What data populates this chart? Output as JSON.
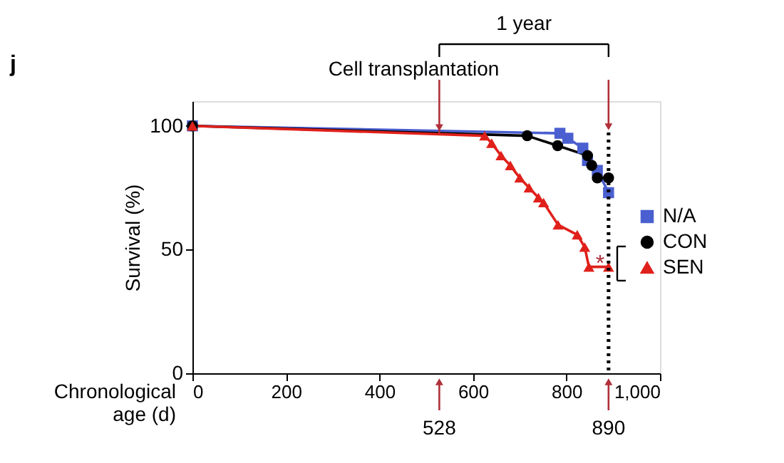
{
  "chart_data": {
    "type": "line",
    "title": "j",
    "xlabel": "Chronological age (d)",
    "ylabel": "Survival (%)",
    "xlim": [
      0,
      1000
    ],
    "xticks": [
      0,
      200,
      400,
      600,
      800,
      {
        "value": 1000,
        "label": "1,000"
      }
    ],
    "ylim": [
      0,
      110
    ],
    "yticks": [
      0,
      50,
      100
    ],
    "grid": false,
    "legend": "right",
    "series": [
      {
        "name": "N/A",
        "color": "#4a5fd0",
        "marker": "square",
        "x": [
          0,
          786,
          803,
          835,
          845,
          866,
          890
        ],
        "values": [
          100,
          97,
          95,
          91,
          86,
          82,
          73
        ]
      },
      {
        "name": "CON",
        "color": "#000000",
        "marker": "circle",
        "x": [
          0,
          716,
          781,
          845,
          854,
          866,
          890
        ],
        "values": [
          100,
          96,
          92,
          88,
          84,
          79,
          79
        ]
      },
      {
        "name": "SEN",
        "color": "#e0201b",
        "marker": "triangle",
        "x": [
          0,
          625,
          640,
          660,
          680,
          700,
          720,
          740,
          751,
          782,
          823,
          839,
          848,
          890
        ],
        "values": [
          100,
          96,
          93,
          88,
          84,
          79,
          75,
          71,
          69,
          60,
          56,
          51,
          43,
          43
        ]
      }
    ],
    "ref_lines": [
      {
        "axis": "x",
        "value": 890,
        "color": "#000000",
        "line_style": "dotted"
      }
    ],
    "annotations": [
      {
        "text": "Cell transplantation",
        "x": 528,
        "y": 97
      },
      "1 year",
      "528",
      "890",
      "*"
    ]
  }
}
